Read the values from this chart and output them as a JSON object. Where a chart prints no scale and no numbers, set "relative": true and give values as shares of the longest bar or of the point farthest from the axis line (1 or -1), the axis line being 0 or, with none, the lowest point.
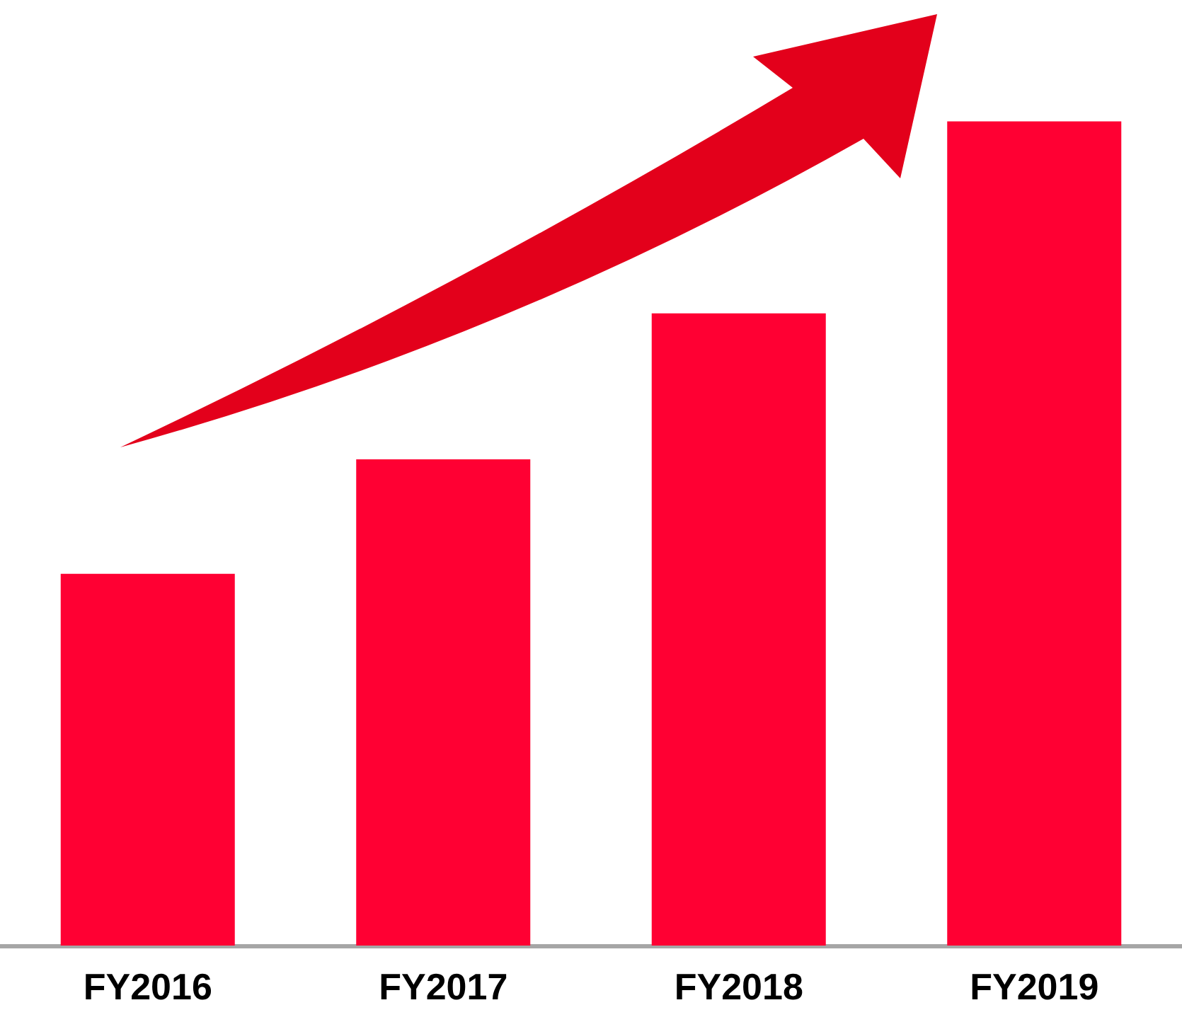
{
  "chart_data": {
    "type": "bar",
    "categories": [
      "FY2016",
      "FY2017",
      "FY2018",
      "FY2019"
    ],
    "values": [
      0.451,
      0.59,
      0.767,
      1
    ],
    "color": "#ff0033",
    "relative": true
  }
}
